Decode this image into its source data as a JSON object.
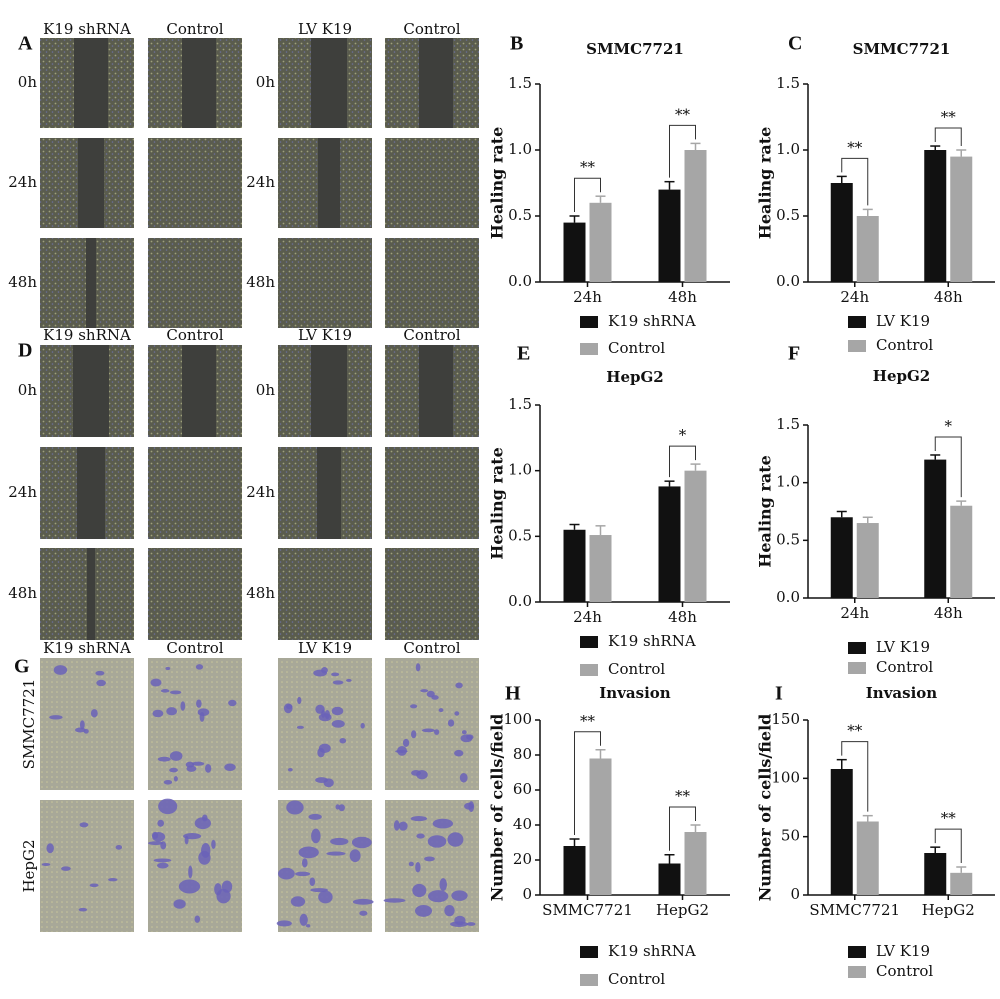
{
  "panels": [
    {
      "letter": "A",
      "columns": [
        "K19 shRNA",
        "Control",
        "LV K19",
        "Control"
      ],
      "rows": [
        "0h",
        "24h",
        "48h"
      ]
    },
    {
      "letter": "D",
      "columns": [
        "K19 shRNA",
        "Control",
        "LV K19",
        "Control"
      ],
      "rows": [
        "0h",
        "24h",
        "48h"
      ]
    },
    {
      "letter": "G",
      "columns": [
        "K19 shRNA",
        "Control",
        "LV K19",
        "Control"
      ],
      "rows": [
        "SMMC7721",
        "HepG2"
      ]
    }
  ],
  "chart_data": [
    {
      "type": "bar",
      "letter": "B",
      "title": "SMMC7721",
      "ylabel": "Healing rate",
      "categories": [
        "24h",
        "48h"
      ],
      "series": [
        {
          "name": "K19 shRNA",
          "color": "#111111",
          "values": [
            0.45,
            0.7
          ],
          "errors": [
            0.05,
            0.06
          ]
        },
        {
          "name": "Control",
          "color": "#a6a6a6",
          "values": [
            0.6,
            1.0
          ],
          "errors": [
            0.05,
            0.05
          ]
        }
      ],
      "significance": [
        "**",
        "**"
      ],
      "ylim": [
        0,
        1.5
      ],
      "yticks": [
        {
          "value": 0,
          "label": "0.0"
        },
        {
          "value": 0.5,
          "label": "0.5"
        },
        {
          "value": 1,
          "label": "1.0"
        },
        {
          "value": 1.5,
          "label": "1.5"
        }
      ]
    },
    {
      "type": "bar",
      "letter": "C",
      "title": "SMMC7721",
      "ylabel": "Healing rate",
      "categories": [
        "24h",
        "48h"
      ],
      "series": [
        {
          "name": "LV K19",
          "color": "#111111",
          "values": [
            0.75,
            1.0
          ],
          "errors": [
            0.05,
            0.03
          ]
        },
        {
          "name": "Control",
          "color": "#a6a6a6",
          "values": [
            0.5,
            0.95
          ],
          "errors": [
            0.05,
            0.05
          ]
        }
      ],
      "significance": [
        "**",
        "**"
      ],
      "ylim": [
        0,
        1.5
      ],
      "yticks": [
        {
          "value": 0,
          "label": "0.0"
        },
        {
          "value": 0.5,
          "label": "0.5"
        },
        {
          "value": 1,
          "label": "1.0"
        },
        {
          "value": 1.5,
          "label": "1.5"
        }
      ]
    },
    {
      "type": "bar",
      "letter": "E",
      "title": "HepG2",
      "ylabel": "Healing rate",
      "categories": [
        "24h",
        "48h"
      ],
      "series": [
        {
          "name": "K19 shRNA",
          "color": "#111111",
          "values": [
            0.55,
            0.88
          ],
          "errors": [
            0.04,
            0.04
          ]
        },
        {
          "name": "Control",
          "color": "#a6a6a6",
          "values": [
            0.51,
            1.0
          ],
          "errors": [
            0.07,
            0.05
          ]
        }
      ],
      "significance": [
        null,
        "*"
      ],
      "ylim": [
        0,
        1.5
      ],
      "yticks": [
        {
          "value": 0,
          "label": "0.0"
        },
        {
          "value": 0.5,
          "label": "0.5"
        },
        {
          "value": 1,
          "label": "1.0"
        },
        {
          "value": 1.5,
          "label": "1.5"
        }
      ]
    },
    {
      "type": "bar",
      "letter": "F",
      "title": "HepG2",
      "ylabel": "Healing rate",
      "categories": [
        "24h",
        "48h"
      ],
      "series": [
        {
          "name": "LV K19",
          "color": "#111111",
          "values": [
            0.7,
            1.2
          ],
          "errors": [
            0.05,
            0.04
          ]
        },
        {
          "name": "Control",
          "color": "#a6a6a6",
          "values": [
            0.65,
            0.8
          ],
          "errors": [
            0.05,
            0.04
          ]
        }
      ],
      "significance": [
        null,
        "*"
      ],
      "ylim": [
        0,
        1.5
      ],
      "yticks": [
        {
          "value": 0,
          "label": "0.0"
        },
        {
          "value": 0.5,
          "label": "0.5"
        },
        {
          "value": 1,
          "label": "1.0"
        },
        {
          "value": 1.5,
          "label": "1.5"
        }
      ]
    },
    {
      "type": "bar",
      "letter": "H",
      "title": "Invasion",
      "ylabel": "Number of cells/field",
      "categories": [
        "SMMC7721",
        "HepG2"
      ],
      "series": [
        {
          "name": "K19 shRNA",
          "color": "#111111",
          "values": [
            28,
            18
          ],
          "errors": [
            4,
            5
          ]
        },
        {
          "name": "Control",
          "color": "#a6a6a6",
          "values": [
            78,
            36
          ],
          "errors": [
            5,
            4
          ]
        }
      ],
      "significance": [
        "**",
        "**"
      ],
      "ylim": [
        0,
        100
      ],
      "yticks": [
        0,
        20,
        40,
        60,
        80,
        100
      ]
    },
    {
      "type": "bar",
      "letter": "I",
      "title": "Invasion",
      "ylabel": "Number of cells/field",
      "categories": [
        "SMMC7721",
        "HepG2"
      ],
      "series": [
        {
          "name": "LV K19",
          "color": "#111111",
          "values": [
            108,
            36
          ],
          "errors": [
            8,
            5
          ]
        },
        {
          "name": "Control",
          "color": "#a6a6a6",
          "values": [
            63,
            19
          ],
          "errors": [
            5,
            5
          ]
        }
      ],
      "significance": [
        "**",
        "**"
      ],
      "ylim": [
        0,
        150
      ],
      "yticks": [
        0,
        50,
        100,
        150
      ]
    }
  ]
}
